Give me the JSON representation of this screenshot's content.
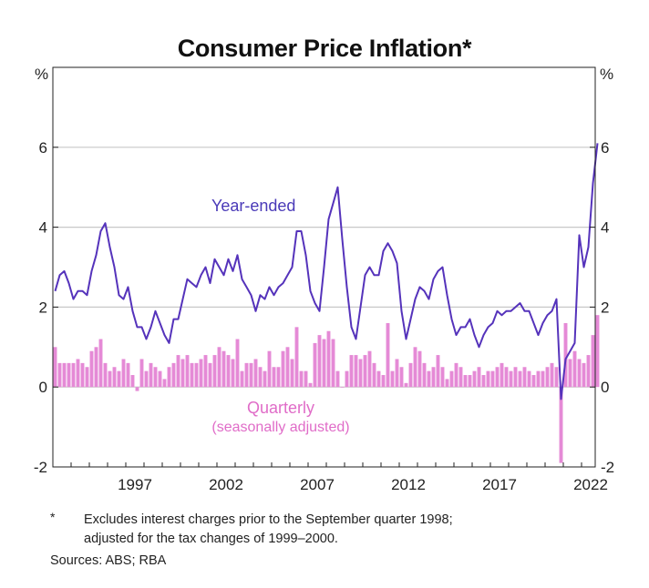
{
  "title": "Consumer Price Inflation*",
  "footnote": {
    "mark": "*",
    "line1": "Excludes interest charges prior to the September quarter 1998;",
    "line2": "adjusted for the tax changes of 1999–2000."
  },
  "sources": "Sources: ABS; RBA",
  "colors": {
    "year_ended": "#5533bb",
    "quarterly": "#e58ad6",
    "grid": "#c8c8c8"
  },
  "chart_data": {
    "type": "bar+line",
    "title": "Consumer Price Inflation*",
    "unit_left": "%",
    "unit_right": "%",
    "ylim": [
      -2,
      8
    ],
    "yticks": [
      -2,
      0,
      2,
      4,
      6
    ],
    "xlim": [
      1993.0,
      2022.75
    ],
    "xticks": [
      1997,
      2002,
      2007,
      2012,
      2017,
      2022
    ],
    "grid": true,
    "series": [
      {
        "name": "Year-ended",
        "kind": "line",
        "label_text": "Year-ended",
        "start": "1993-Q1",
        "values": [
          2.4,
          2.8,
          2.9,
          2.6,
          2.2,
          2.4,
          2.4,
          2.3,
          2.9,
          3.3,
          3.9,
          4.1,
          3.5,
          3.0,
          2.3,
          2.2,
          2.5,
          1.9,
          1.5,
          1.5,
          1.2,
          1.5,
          1.9,
          1.6,
          1.3,
          1.1,
          1.7,
          1.7,
          2.2,
          2.7,
          2.6,
          2.5,
          2.8,
          3.0,
          2.6,
          3.2,
          3.0,
          2.8,
          3.2,
          2.9,
          3.3,
          2.7,
          2.5,
          2.3,
          1.9,
          2.3,
          2.2,
          2.5,
          2.3,
          2.5,
          2.6,
          2.8,
          3.0,
          3.9,
          3.9,
          3.3,
          2.4,
          2.1,
          1.9,
          3.0,
          4.2,
          4.6,
          5.0,
          3.7,
          2.5,
          1.5,
          1.2,
          2.0,
          2.8,
          3.0,
          2.8,
          2.8,
          3.4,
          3.6,
          3.4,
          3.1,
          1.9,
          1.2,
          1.7,
          2.2,
          2.5,
          2.4,
          2.2,
          2.7,
          2.9,
          3.0,
          2.3,
          1.7,
          1.3,
          1.5,
          1.5,
          1.7,
          1.3,
          1.0,
          1.3,
          1.5,
          1.6,
          1.9,
          1.8,
          1.9,
          1.9,
          2.0,
          2.1,
          1.9,
          1.9,
          1.6,
          1.3,
          1.6,
          1.8,
          1.9,
          2.2,
          -0.3,
          0.7,
          0.9,
          1.1,
          3.8,
          3.0,
          3.5,
          5.1,
          6.1
        ]
      },
      {
        "name": "Quarterly",
        "kind": "bar",
        "label_text": "Quarterly",
        "label_subtext": "(seasonally adjusted)",
        "start": "1993-Q1",
        "values": [
          1.0,
          0.6,
          0.6,
          0.6,
          0.6,
          0.7,
          0.6,
          0.5,
          0.9,
          1.0,
          1.2,
          0.6,
          0.4,
          0.5,
          0.4,
          0.7,
          0.6,
          0.3,
          -0.1,
          0.7,
          0.4,
          0.6,
          0.5,
          0.4,
          0.2,
          0.5,
          0.6,
          0.8,
          0.7,
          0.8,
          0.6,
          0.6,
          0.7,
          0.8,
          0.6,
          0.8,
          1.0,
          0.9,
          0.8,
          0.7,
          1.2,
          0.4,
          0.6,
          0.6,
          0.7,
          0.5,
          0.4,
          0.9,
          0.5,
          0.5,
          0.9,
          1.0,
          0.7,
          1.5,
          0.4,
          0.4,
          0.1,
          1.1,
          1.3,
          1.2,
          1.4,
          1.2,
          0.4,
          0.0,
          0.4,
          0.8,
          0.8,
          0.7,
          0.8,
          0.9,
          0.6,
          0.4,
          0.3,
          1.6,
          0.4,
          0.7,
          0.5,
          0.1,
          0.6,
          1.0,
          0.9,
          0.6,
          0.4,
          0.5,
          0.8,
          0.5,
          0.2,
          0.4,
          0.6,
          0.5,
          0.3,
          0.3,
          0.4,
          0.5,
          0.3,
          0.4,
          0.4,
          0.5,
          0.6,
          0.5,
          0.4,
          0.5,
          0.4,
          0.5,
          0.4,
          0.3,
          0.4,
          0.4,
          0.5,
          0.6,
          0.5,
          -1.9,
          1.6,
          0.7,
          0.9,
          0.7,
          0.6,
          0.8,
          1.3,
          1.8
        ]
      }
    ]
  }
}
